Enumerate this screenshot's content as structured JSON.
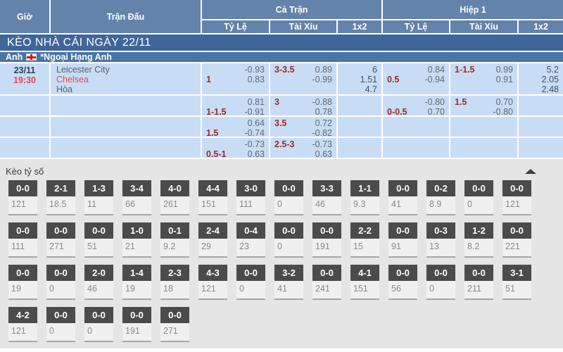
{
  "table": {
    "headers": {
      "time": "Giờ",
      "match": "Trận Đấu",
      "full_time": "Cả Trận",
      "first_half": "Hiệp 1",
      "sub": [
        "Tỷ Lệ",
        "Tài Xỉu",
        "1x2"
      ]
    },
    "title": "KÈO NHÀ CÁI NGÀY 22/11",
    "league": {
      "country": "Anh",
      "name": "*Ngoại Hạng Anh",
      "flag": "england-flag"
    },
    "match": {
      "date": "23/11",
      "time": "19:30",
      "teams": [
        "Leicester City",
        "Chelsea",
        "Hòa"
      ]
    },
    "odds_rows": [
      {
        "ft_hdp": [
          [
            "",
            "-0.93"
          ],
          [
            "1",
            "0.83"
          ]
        ],
        "ft_ou": [
          [
            "3-3.5",
            "0.89"
          ],
          [
            "",
            "-0.99"
          ]
        ],
        "ft_1x2": [
          "6",
          "1.51",
          "4.7"
        ],
        "h1_hdp": [
          [
            "",
            "0.84"
          ],
          [
            "0.5",
            "-0.94"
          ]
        ],
        "h1_ou": [
          [
            "1-1.5",
            "0.99"
          ],
          [
            "",
            "0.91"
          ]
        ],
        "h1_1x2": [
          "5.2",
          "2.05",
          "2.48"
        ]
      },
      {
        "ft_hdp": [
          [
            "",
            "0.81"
          ],
          [
            "1-1.5",
            "-0.91"
          ]
        ],
        "ft_ou": [
          [
            "3",
            "-0.88"
          ],
          [
            "",
            "0.78"
          ]
        ],
        "ft_1x2": [],
        "h1_hdp": [
          [
            "",
            "-0.80"
          ],
          [
            "0-0.5",
            "0.70"
          ]
        ],
        "h1_ou": [
          [
            "1.5",
            "0.70"
          ],
          [
            "",
            "-0.80"
          ]
        ],
        "h1_1x2": []
      },
      {
        "ft_hdp": [
          [
            "",
            "0.64"
          ],
          [
            "1.5",
            "-0.74"
          ]
        ],
        "ft_ou": [
          [
            "3.5",
            "0.72"
          ],
          [
            "",
            "-0.82"
          ]
        ],
        "ft_1x2": [],
        "h1_hdp": [],
        "h1_ou": [],
        "h1_1x2": []
      },
      {
        "ft_hdp": [
          [
            "",
            "-0.73"
          ],
          [
            "0.5-1",
            "0.63"
          ]
        ],
        "ft_ou": [
          [
            "2.5-3",
            "-0.73"
          ],
          [
            "",
            "0.63"
          ]
        ],
        "ft_1x2": [],
        "h1_hdp": [],
        "h1_ou": [],
        "h1_1x2": []
      }
    ]
  },
  "score_section": {
    "title": "Kèo tỷ số",
    "collapse_icon": "triangle-up",
    "rows": [
      [
        {
          "score": "0-0",
          "odds": "121"
        },
        {
          "score": "2-1",
          "odds": "18.5"
        },
        {
          "score": "1-3",
          "odds": "11"
        },
        {
          "score": "3-4",
          "odds": "66"
        },
        {
          "score": "4-0",
          "odds": "261"
        },
        {
          "score": "4-4",
          "odds": "151"
        },
        {
          "score": "3-0",
          "odds": "111"
        },
        {
          "score": "0-0",
          "odds": "0"
        },
        {
          "score": "3-3",
          "odds": "46"
        },
        {
          "score": "1-1",
          "odds": "9.3"
        },
        {
          "score": "0-0",
          "odds": "41"
        },
        {
          "score": "0-2",
          "odds": "8.9"
        },
        {
          "score": "0-0",
          "odds": "0"
        },
        {
          "score": "0-0",
          "odds": "121"
        }
      ],
      [
        {
          "score": "0-0",
          "odds": "111"
        },
        {
          "score": "0-0",
          "odds": "271"
        },
        {
          "score": "0-0",
          "odds": "51"
        },
        {
          "score": "1-0",
          "odds": "21"
        },
        {
          "score": "0-1",
          "odds": "9.2"
        },
        {
          "score": "2-4",
          "odds": "29"
        },
        {
          "score": "0-4",
          "odds": "23"
        },
        {
          "score": "0-0",
          "odds": "0"
        },
        {
          "score": "0-0",
          "odds": "191"
        },
        {
          "score": "2-2",
          "odds": "15"
        },
        {
          "score": "0-0",
          "odds": "91"
        },
        {
          "score": "0-3",
          "odds": "13"
        },
        {
          "score": "1-2",
          "odds": "8.2"
        },
        {
          "score": "0-0",
          "odds": "221"
        }
      ],
      [
        {
          "score": "0-0",
          "odds": "19"
        },
        {
          "score": "0-0",
          "odds": "0"
        },
        {
          "score": "2-0",
          "odds": "46"
        },
        {
          "score": "1-4",
          "odds": "19"
        },
        {
          "score": "2-3",
          "odds": "18"
        },
        {
          "score": "4-3",
          "odds": "121"
        },
        {
          "score": "0-0",
          "odds": "0"
        },
        {
          "score": "3-2",
          "odds": "41"
        },
        {
          "score": "0-0",
          "odds": "241"
        },
        {
          "score": "4-1",
          "odds": "151"
        },
        {
          "score": "0-0",
          "odds": "56"
        },
        {
          "score": "0-0",
          "odds": "0"
        },
        {
          "score": "0-0",
          "odds": "211"
        },
        {
          "score": "3-1",
          "odds": "51"
        }
      ],
      [
        {
          "score": "4-2",
          "odds": "121"
        },
        {
          "score": "0-0",
          "odds": "0"
        },
        {
          "score": "0-0",
          "odds": "0"
        },
        {
          "score": "0-0",
          "odds": "191"
        },
        {
          "score": "0-0",
          "odds": "271"
        }
      ]
    ]
  },
  "colors": {
    "header_blue": "#6383aa",
    "title_bar_blue": "#406699",
    "league_bar_blue": "#4a74a3",
    "row_light_blue": "#c9dcf5",
    "handicap_red": "#9c2c24",
    "team_away_red": "#e9494c",
    "score_box_gray": "#4b4b4b",
    "section_gray": "#e5e5e5"
  }
}
